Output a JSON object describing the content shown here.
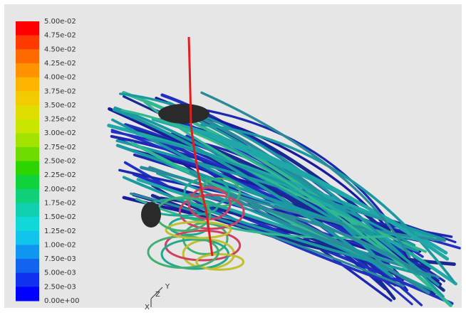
{
  "colorbar": {
    "labels": [
      "5.00e-02",
      "4.75e-02",
      "4.50e-02",
      "4.25e-02",
      "4.00e-02",
      "3.75e-02",
      "3.50e-02",
      "3.25e-02",
      "3.00e-02",
      "2.75e-02",
      "2.50e-02",
      "2.25e-02",
      "2.00e-02",
      "1.75e-02",
      "1.50e-02",
      "1.25e-02",
      "1.00e-02",
      "7.50e-03",
      "5.00e-03",
      "2.50e-03",
      "0.00e+00"
    ],
    "colors": [
      "#ff0000",
      "#ff3a00",
      "#ff6a00",
      "#ff9400",
      "#ffb400",
      "#f2cc00",
      "#e0de00",
      "#c8e600",
      "#a2e400",
      "#6edc00",
      "#2ed400",
      "#10d23a",
      "#10d07a",
      "#10d0b0",
      "#10d8d8",
      "#10c4ec",
      "#1096f0",
      "#1064f0",
      "#1032f0",
      "#0000ff"
    ]
  },
  "axes": {
    "y": "Y",
    "z": "Z",
    "x": "X"
  }
}
